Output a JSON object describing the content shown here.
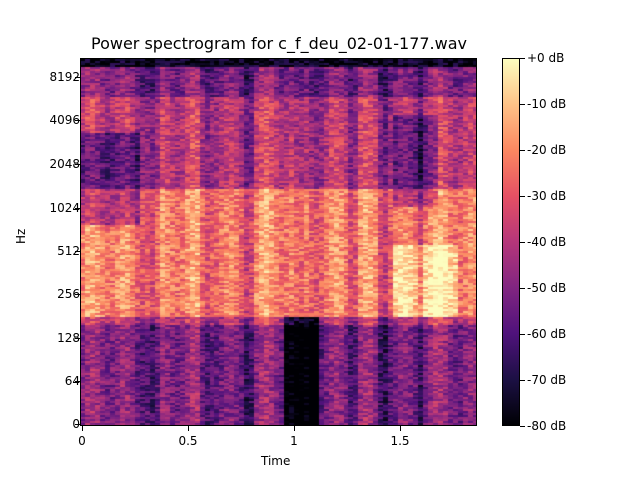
{
  "chart_data": {
    "type": "heatmap",
    "title": "Power spectrogram for c_f_deu_02-01-177.wav",
    "xlabel": "Time",
    "ylabel": "Hz",
    "x_ticks": [
      "0",
      "0.5",
      "1",
      "1.5"
    ],
    "x_tick_values": [
      0,
      0.5,
      1.0,
      1.5
    ],
    "xlim": [
      0,
      1.86
    ],
    "y_ticks": [
      "0",
      "64",
      "128",
      "256",
      "512",
      "1024",
      "2048",
      "4096",
      "8192"
    ],
    "y_scale": "log",
    "colorbar": {
      "colormap": "magma",
      "ticks": [
        "+0 dB",
        "-10 dB",
        "-20 dB",
        "-30 dB",
        "-40 dB",
        "-50 dB",
        "-60 dB",
        "-70 dB",
        "-80 dB"
      ],
      "range": [
        -80,
        0
      ]
    },
    "description": "Log-frequency power spectrogram of a speech signal, ~1.86 s long; energetic voiced bands between 128–2048 Hz with vertical striations, quiet low-frequency region around 1.0–1.1 s."
  }
}
